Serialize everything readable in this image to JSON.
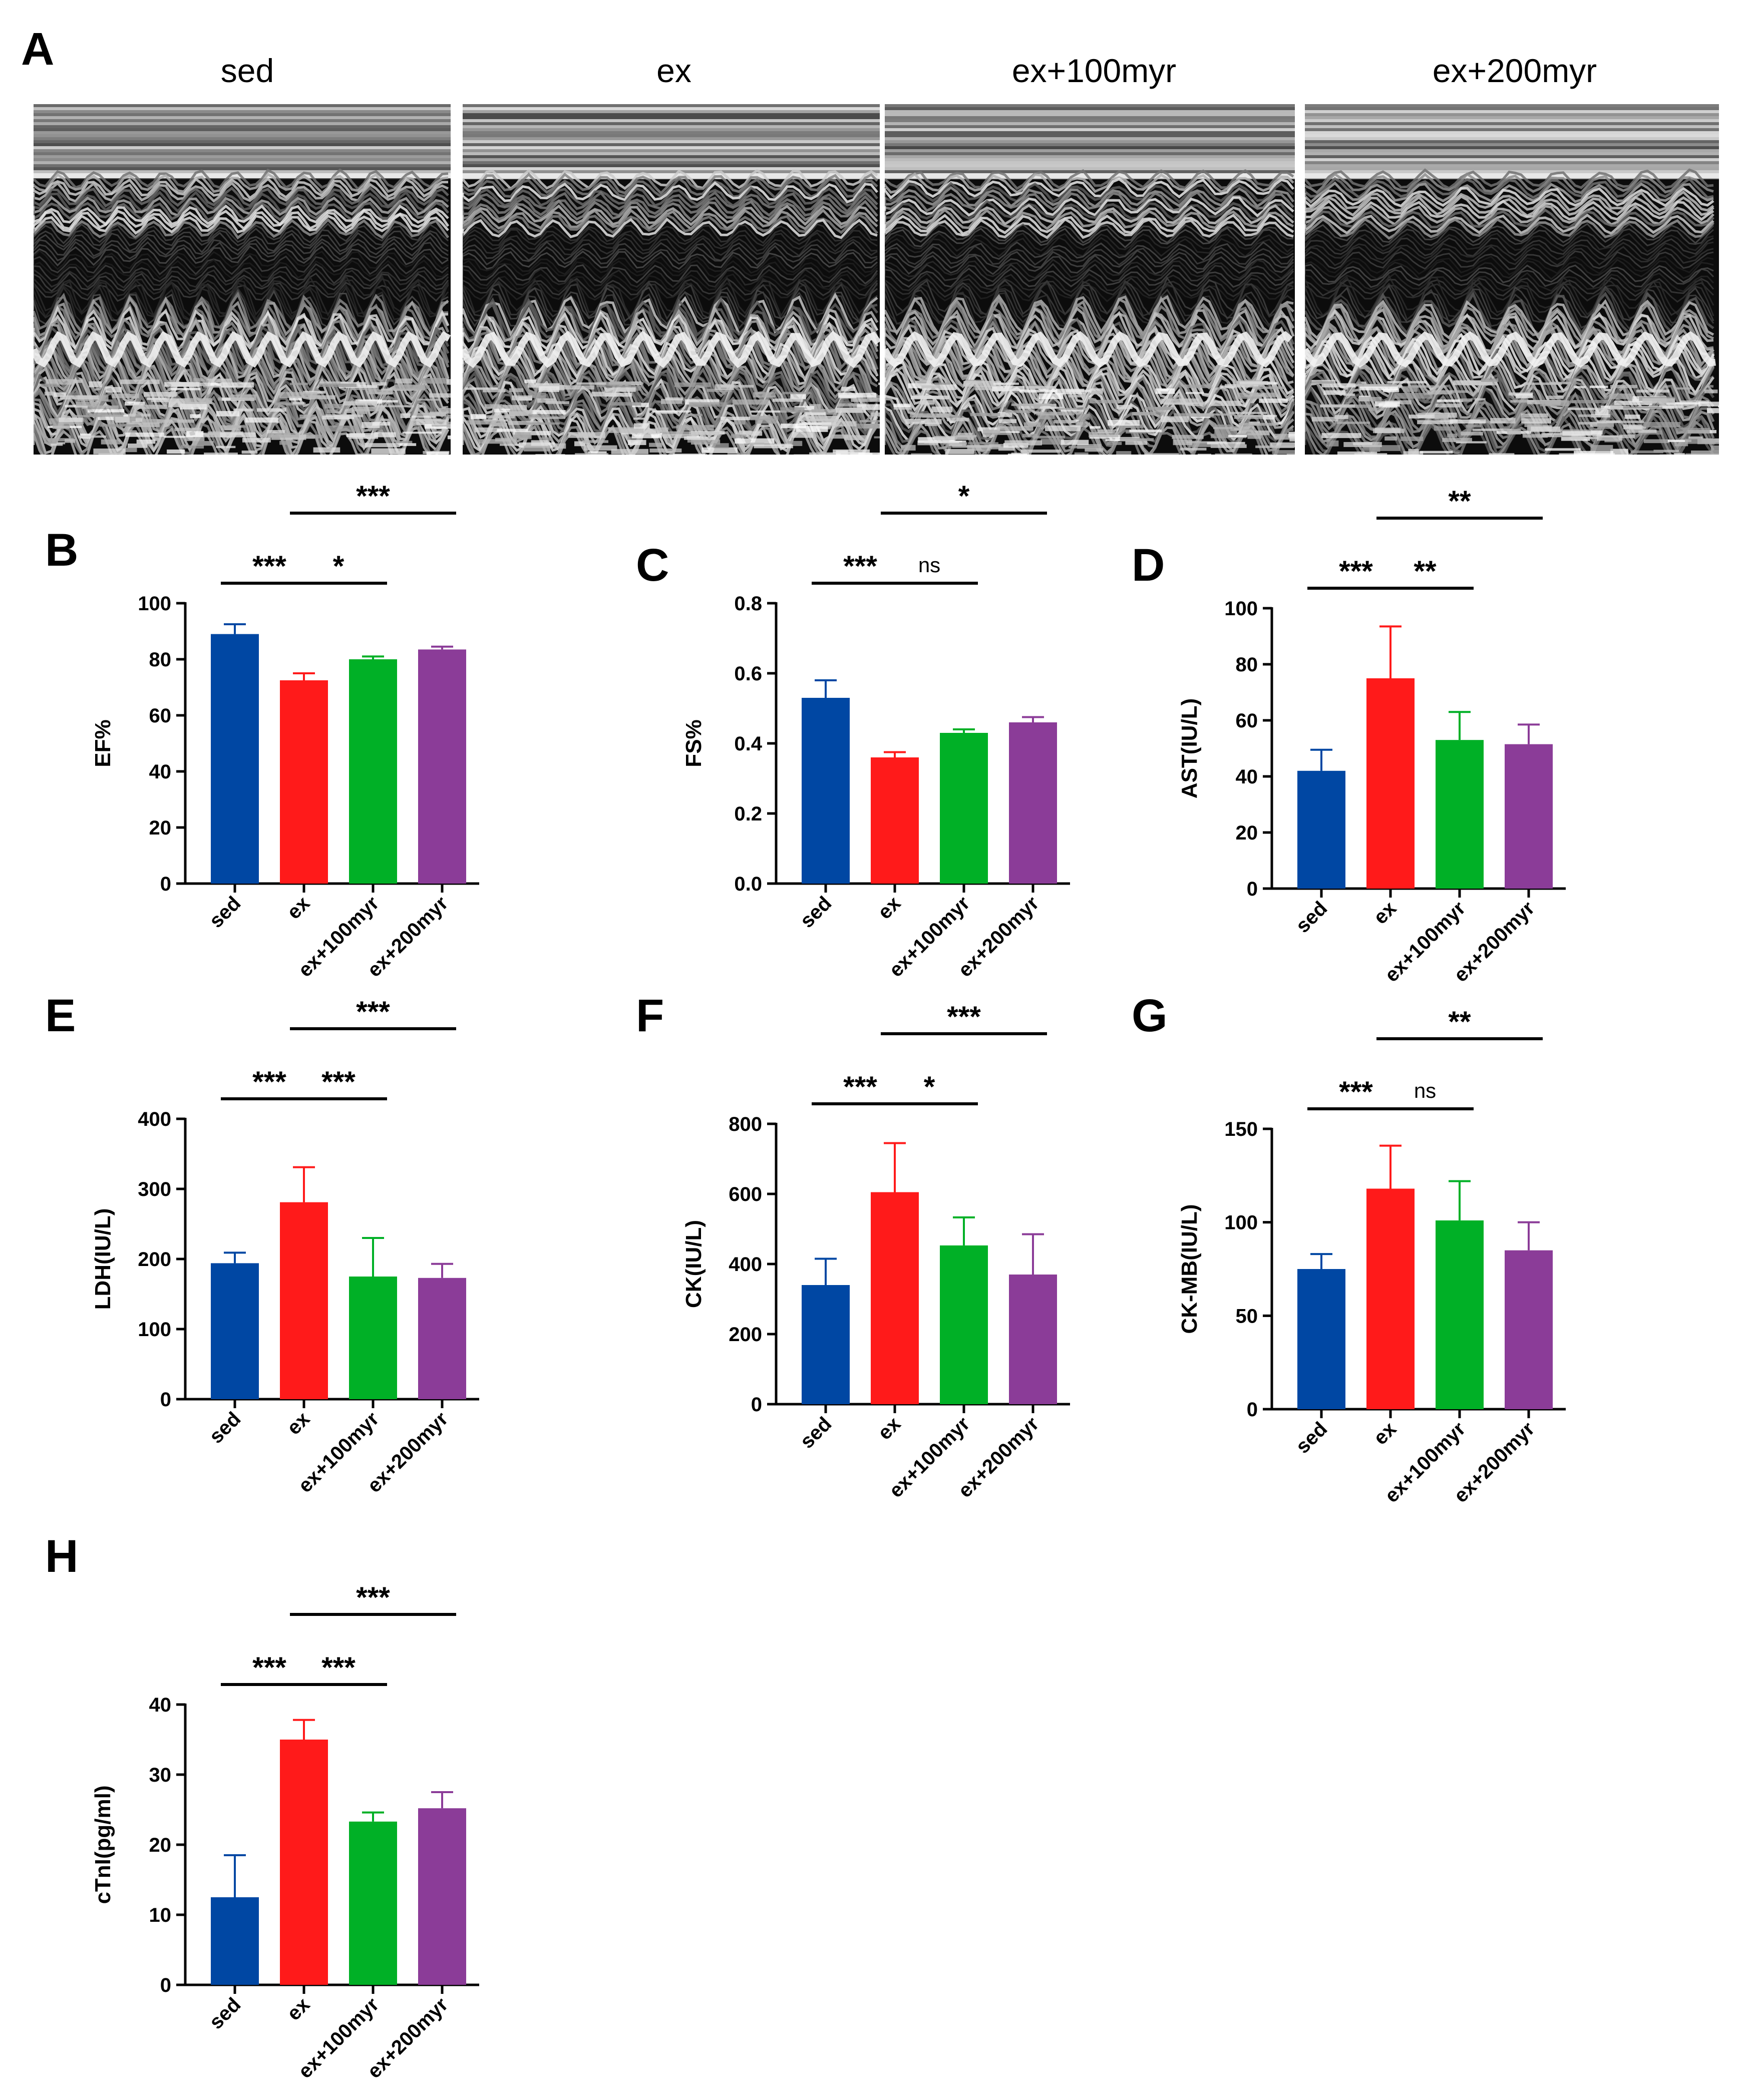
{
  "panel_A": {
    "letter": "A",
    "labels": [
      "sed",
      "ex",
      "ex+100myr",
      "ex+200myr"
    ]
  },
  "colors": {
    "sed": "#0047a3",
    "ex": "#ff1a1a",
    "ex100": "#00b026",
    "ex200": "#8b3c98"
  },
  "chart_data": [
    {
      "panel": "B",
      "type": "bar",
      "ylabel": "EF%",
      "categories": [
        "sed",
        "ex",
        "ex+100myr",
        "ex+200myr"
      ],
      "values": [
        89,
        72.5,
        80,
        83.5
      ],
      "errors": [
        3.5,
        2.5,
        1,
        1
      ],
      "ylim": [
        0,
        100
      ],
      "yticks": [
        0,
        20,
        40,
        60,
        80,
        100
      ],
      "tick_labels": [
        "0",
        "20",
        "40",
        "60",
        "80",
        "100"
      ],
      "significance": [
        {
          "from": 0,
          "to": 1,
          "label": "***",
          "level": 0
        },
        {
          "from": 1,
          "to": 2,
          "label": "*",
          "level": 0
        },
        {
          "from": 1,
          "to": 3,
          "label": "***",
          "level": 1
        }
      ]
    },
    {
      "panel": "C",
      "type": "bar",
      "ylabel": "FS%",
      "categories": [
        "sed",
        "ex",
        "ex+100myr",
        "ex+200myr"
      ],
      "values": [
        0.53,
        0.36,
        0.43,
        0.46
      ],
      "errors": [
        0.05,
        0.015,
        0.01,
        0.015
      ],
      "ylim": [
        0,
        0.8
      ],
      "yticks": [
        0,
        0.2,
        0.4,
        0.6,
        0.8
      ],
      "tick_labels": [
        "0.0",
        "0.2",
        "0.4",
        "0.6",
        "0.8"
      ],
      "significance": [
        {
          "from": 0,
          "to": 1,
          "label": "***",
          "level": 0
        },
        {
          "from": 1,
          "to": 2,
          "label": "ns",
          "level": 0
        },
        {
          "from": 1,
          "to": 3,
          "label": "*",
          "level": 1
        }
      ]
    },
    {
      "panel": "D",
      "type": "bar",
      "ylabel": "AST(IU/L)",
      "categories": [
        "sed",
        "ex",
        "ex+100myr",
        "ex+200myr"
      ],
      "values": [
        42,
        75,
        53,
        51.5
      ],
      "errors": [
        7.5,
        18.5,
        10,
        7
      ],
      "ylim": [
        0,
        100
      ],
      "yticks": [
        0,
        20,
        40,
        60,
        80,
        100
      ],
      "tick_labels": [
        "0",
        "20",
        "40",
        "60",
        "80",
        "100"
      ],
      "significance": [
        {
          "from": 0,
          "to": 1,
          "label": "***",
          "level": 0
        },
        {
          "from": 1,
          "to": 2,
          "label": "**",
          "level": 0
        },
        {
          "from": 1,
          "to": 3,
          "label": "**",
          "level": 1
        }
      ]
    },
    {
      "panel": "E",
      "type": "bar",
      "ylabel": "LDH(IU/L)",
      "categories": [
        "sed",
        "ex",
        "ex+100myr",
        "ex+200myr"
      ],
      "values": [
        194,
        281,
        175,
        173
      ],
      "errors": [
        15,
        50,
        55,
        20
      ],
      "ylim": [
        0,
        400
      ],
      "yticks": [
        0,
        100,
        200,
        300,
        400
      ],
      "tick_labels": [
        "0",
        "100",
        "200",
        "300",
        "400"
      ],
      "significance": [
        {
          "from": 0,
          "to": 1,
          "label": "***",
          "level": 0
        },
        {
          "from": 1,
          "to": 2,
          "label": "***",
          "level": 0
        },
        {
          "from": 1,
          "to": 3,
          "label": "***",
          "level": 1
        }
      ]
    },
    {
      "panel": "F",
      "type": "bar",
      "ylabel": "CK(IU/L)",
      "categories": [
        "sed",
        "ex",
        "ex+100myr",
        "ex+200myr"
      ],
      "values": [
        340,
        605,
        453,
        370
      ],
      "errors": [
        75,
        140,
        80,
        115
      ],
      "ylim": [
        0,
        800
      ],
      "yticks": [
        0,
        200,
        400,
        600,
        800
      ],
      "tick_labels": [
        "0",
        "200",
        "400",
        "600",
        "800"
      ],
      "significance": [
        {
          "from": 0,
          "to": 1,
          "label": "***",
          "level": 0
        },
        {
          "from": 1,
          "to": 2,
          "label": "*",
          "level": 0
        },
        {
          "from": 1,
          "to": 3,
          "label": "***",
          "level": 1
        }
      ]
    },
    {
      "panel": "G",
      "type": "bar",
      "ylabel": "CK-MB(IU/L)",
      "categories": [
        "sed",
        "ex",
        "ex+100myr",
        "ex+200myr"
      ],
      "values": [
        75,
        118,
        101,
        85
      ],
      "errors": [
        8,
        23,
        21,
        15
      ],
      "ylim": [
        0,
        150
      ],
      "yticks": [
        0,
        50,
        100,
        150
      ],
      "tick_labels": [
        "0",
        "50",
        "100",
        "150"
      ],
      "significance": [
        {
          "from": 0,
          "to": 1,
          "label": "***",
          "level": 0
        },
        {
          "from": 1,
          "to": 2,
          "label": "ns",
          "level": 0
        },
        {
          "from": 1,
          "to": 3,
          "label": "**",
          "level": 1
        }
      ]
    },
    {
      "panel": "H",
      "type": "bar",
      "ylabel": "cTnI(pg/ml)",
      "categories": [
        "sed",
        "ex",
        "ex+100myr",
        "ex+200myr"
      ],
      "values": [
        12.5,
        35,
        23.3,
        25.2
      ],
      "errors": [
        6,
        2.8,
        1.3,
        2.3
      ],
      "ylim": [
        0,
        40
      ],
      "yticks": [
        0,
        10,
        20,
        30,
        40
      ],
      "tick_labels": [
        "0",
        "10",
        "20",
        "30",
        "40"
      ],
      "significance": [
        {
          "from": 0,
          "to": 1,
          "label": "***",
          "level": 0
        },
        {
          "from": 1,
          "to": 2,
          "label": "***",
          "level": 0
        },
        {
          "from": 1,
          "to": 3,
          "label": "***",
          "level": 1
        }
      ]
    }
  ]
}
